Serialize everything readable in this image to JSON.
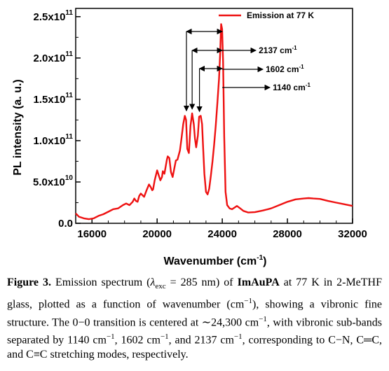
{
  "chart_data": {
    "type": "line",
    "xlabel": "Wavenumber (cm",
    "xlabel_sup": "-1",
    "xlabel_end": ")",
    "ylabel": "PL intensity (a. u.)",
    "xlim": [
      15000,
      32000
    ],
    "ylim": [
      0,
      260000000000.0
    ],
    "x_ticks": [
      16000,
      20000,
      24000,
      28000,
      32000
    ],
    "x_tick_labels": [
      "16000",
      "20000",
      "24000",
      "28000",
      "32000"
    ],
    "y_ticks": [
      0,
      50000000000.0,
      100000000000.0,
      150000000000.0,
      200000000000.0,
      250000000000.0
    ],
    "y_tick_labels": [
      {
        "base": "0.0",
        "exp": ""
      },
      {
        "base": "5.0x10",
        "exp": "10"
      },
      {
        "base": "1.0x10",
        "exp": "11"
      },
      {
        "base": "1.5x10",
        "exp": "11"
      },
      {
        "base": "2.0x10",
        "exp": "11"
      },
      {
        "base": "2.5x10",
        "exp": "11"
      }
    ],
    "series": [
      {
        "name": "Emission at 77 K",
        "color": "#ee1111",
        "x": [
          15000,
          15200,
          15500,
          15800,
          16100,
          16400,
          16700,
          17000,
          17300,
          17600,
          17900,
          18100,
          18300,
          18500,
          18600,
          18700,
          18800,
          18900,
          19000,
          19200,
          19350,
          19500,
          19600,
          19700,
          19750,
          19850,
          20000,
          20100,
          20200,
          20300,
          20350,
          20450,
          20600,
          20650,
          20750,
          20850,
          20950,
          21050,
          21150,
          21250,
          21400,
          21500,
          21600,
          21700,
          21780,
          21850,
          21950,
          22050,
          22150,
          22250,
          22320,
          22400,
          22500,
          22580,
          22680,
          22760,
          22830,
          22900,
          23000,
          23100,
          23200,
          23300,
          23400,
          23500,
          23600,
          23700,
          23800,
          23870,
          23930,
          23990,
          24050,
          24120,
          24200,
          24300,
          24450,
          24600,
          24750,
          24900,
          25100,
          25300,
          25600,
          26000,
          26500,
          27000,
          27500,
          28000,
          28500,
          29000,
          29300,
          29600,
          30000,
          30500,
          31000,
          31500,
          32000
        ],
        "y": [
          12000000000.0,
          8000000000.0,
          6000000000.0,
          5000000000.0,
          6000000000.0,
          9000000000.0,
          11000000000.0,
          14000000000.0,
          17000000000.0,
          18000000000.0,
          22000000000.0,
          24000000000.0,
          22000000000.0,
          26000000000.0,
          30000000000.0,
          27000000000.0,
          26000000000.0,
          33000000000.0,
          36000000000.0,
          32000000000.0,
          40000000000.0,
          47000000000.0,
          44000000000.0,
          40000000000.0,
          41000000000.0,
          52000000000.0,
          64000000000.0,
          58000000000.0,
          52000000000.0,
          56000000000.0,
          63000000000.0,
          60000000000.0,
          77000000000.0,
          81000000000.0,
          79000000000.0,
          62000000000.0,
          56000000000.0,
          66000000000.0,
          76000000000.0,
          77000000000.0,
          88000000000.0,
          103000000000.0,
          120000000000.0,
          130000000000.0,
          125000000000.0,
          90000000000.0,
          85000000000.0,
          118000000000.0,
          133000000000.0,
          120000000000.0,
          103000000000.0,
          92000000000.0,
          106000000000.0,
          129000000000.0,
          130000000000.0,
          120000000000.0,
          90000000000.0,
          60000000000.0,
          38000000000.0,
          35000000000.0,
          42000000000.0,
          58000000000.0,
          75000000000.0,
          95000000000.0,
          118000000000.0,
          145000000000.0,
          175000000000.0,
          205000000000.0,
          241000000000.0,
          235000000000.0,
          195000000000.0,
          105000000000.0,
          38000000000.0,
          22000000000.0,
          18000000000.0,
          17000000000.0,
          19000000000.0,
          21000000000.0,
          18000000000.0,
          15000000000.0,
          13000000000.0,
          13500000000.0,
          15500000000.0,
          18000000000.0,
          22000000000.0,
          26000000000.0,
          29000000000.0,
          30000000000.0,
          30500000000.0,
          30000000000.0,
          29500000000.0,
          27000000000.0,
          25000000000.0,
          23000000000.0,
          21000000000.0
        ]
      }
    ],
    "legend": {
      "position": "top-right",
      "label": "Emission at 77 K"
    },
    "annotations": [
      {
        "text": "2137 cm",
        "sup": "-1",
        "from_x": 21800,
        "from_y": 131000000000.0
      },
      {
        "text": "1602 cm",
        "sup": "-1",
        "from_x": 22150,
        "from_y": 133000000000.0
      },
      {
        "text": "1140 cm",
        "sup": "-1",
        "from_x": 22600,
        "from_y": 130000000000.0
      }
    ],
    "annotation_ref_x": 24000
  },
  "caption": {
    "label": "Figure 3.",
    "t1": " Emission spectrum (",
    "lambda": "λ",
    "exc": "exc",
    "t2": " = 285 nm) of ",
    "compound": "ImAuPA",
    "t3": " at 77 K in 2-MeTHF glass, plotted as a function of wavenumber (cm",
    "sup1": "−1",
    "t4": "), showing a vibronic fine structure. The 0−0 transition is centered at ∼24,300 cm",
    "sup2": "−1",
    "t5": ", with vibronic sub-bands separated by 1140 cm",
    "sup3": "−1",
    "t6": ", 1602 cm",
    "sup4": "−1",
    "t7": ", and 2137 cm",
    "sup5": "−1",
    "t8": ", corresponding to C−N, C═C, and C≡C stretching modes, respectively."
  }
}
